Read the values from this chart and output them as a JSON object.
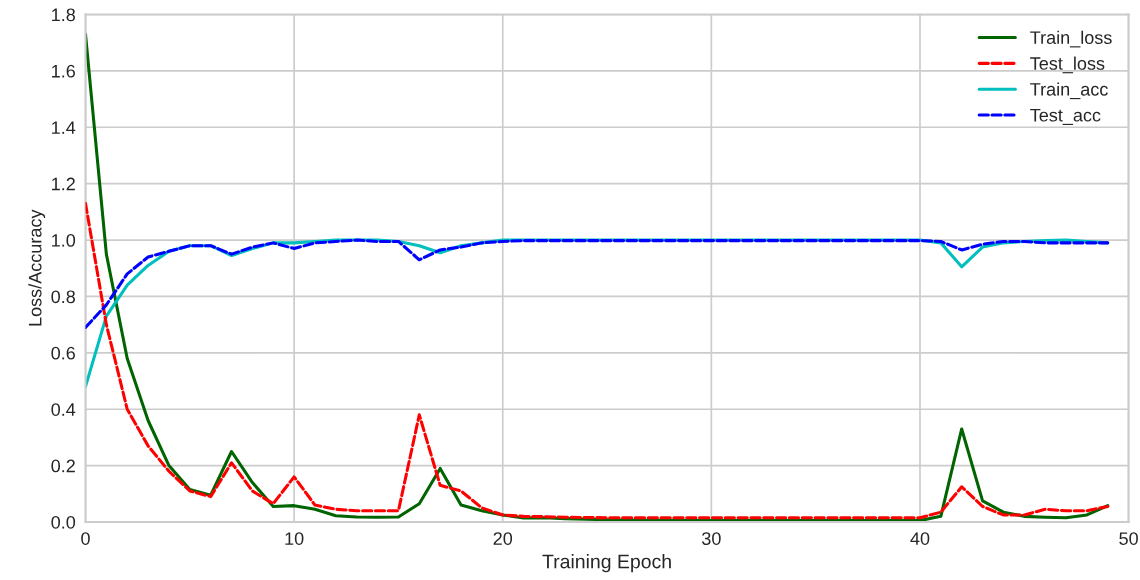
{
  "chart_data": {
    "type": "line",
    "xlabel": "Training Epoch",
    "ylabel": "Loss/Accuracy",
    "x": [
      0,
      1,
      2,
      3,
      4,
      5,
      6,
      7,
      8,
      9,
      10,
      11,
      12,
      13,
      14,
      15,
      16,
      17,
      18,
      19,
      20,
      21,
      22,
      23,
      24,
      25,
      26,
      27,
      28,
      29,
      30,
      31,
      32,
      33,
      34,
      35,
      36,
      37,
      38,
      39,
      40,
      41,
      42,
      43,
      44,
      45,
      46,
      47,
      48,
      49
    ],
    "series": [
      {
        "name": "Train_loss",
        "color": "#006400",
        "line_style": "solid",
        "values": [
          1.73,
          0.95,
          0.58,
          0.36,
          0.2,
          0.115,
          0.095,
          0.25,
          0.14,
          0.055,
          0.058,
          0.045,
          0.022,
          0.018,
          0.017,
          0.018,
          0.065,
          0.19,
          0.06,
          0.04,
          0.025,
          0.014,
          0.015,
          0.012,
          0.01,
          0.008,
          0.007,
          0.006,
          0.006,
          0.005,
          0.005,
          0.005,
          0.005,
          0.005,
          0.005,
          0.005,
          0.005,
          0.005,
          0.005,
          0.005,
          0.005,
          0.02,
          0.33,
          0.075,
          0.035,
          0.02,
          0.017,
          0.015,
          0.025,
          0.058
        ]
      },
      {
        "name": "Test_loss",
        "color": "#ff0000",
        "line_style": "dashed",
        "values": [
          1.13,
          0.7,
          0.4,
          0.27,
          0.18,
          0.11,
          0.09,
          0.21,
          0.11,
          0.065,
          0.16,
          0.06,
          0.045,
          0.04,
          0.04,
          0.04,
          0.38,
          0.13,
          0.11,
          0.05,
          0.025,
          0.02,
          0.019,
          0.017,
          0.016,
          0.015,
          0.015,
          0.015,
          0.015,
          0.015,
          0.015,
          0.015,
          0.015,
          0.015,
          0.015,
          0.015,
          0.015,
          0.015,
          0.015,
          0.015,
          0.015,
          0.035,
          0.125,
          0.055,
          0.025,
          0.025,
          0.045,
          0.04,
          0.04,
          0.055
        ]
      },
      {
        "name": "Train_acc",
        "color": "#00bfbf",
        "line_style": "solid",
        "values": [
          0.48,
          0.73,
          0.84,
          0.91,
          0.96,
          0.98,
          0.98,
          0.945,
          0.97,
          0.99,
          0.99,
          0.995,
          1.0,
          1.0,
          1.0,
          0.995,
          0.98,
          0.955,
          0.98,
          0.99,
          1.0,
          1.0,
          1.0,
          1.0,
          1.0,
          1.0,
          1.0,
          1.0,
          1.0,
          1.0,
          1.0,
          1.0,
          1.0,
          1.0,
          1.0,
          1.0,
          1.0,
          1.0,
          1.0,
          1.0,
          1.0,
          0.99,
          0.905,
          0.975,
          0.99,
          0.995,
          0.998,
          1.0,
          0.995,
          0.99
        ]
      },
      {
        "name": "Test_acc",
        "color": "#0000ff",
        "line_style": "dashed",
        "values": [
          0.69,
          0.77,
          0.88,
          0.94,
          0.96,
          0.98,
          0.98,
          0.95,
          0.975,
          0.99,
          0.97,
          0.99,
          0.995,
          1.0,
          0.995,
          0.995,
          0.93,
          0.965,
          0.975,
          0.99,
          0.995,
          0.998,
          0.998,
          0.998,
          0.998,
          0.998,
          0.998,
          0.998,
          0.998,
          0.998,
          0.998,
          0.998,
          0.998,
          0.998,
          0.998,
          0.998,
          0.998,
          0.998,
          0.998,
          0.998,
          0.998,
          0.995,
          0.965,
          0.985,
          0.995,
          0.995,
          0.99,
          0.99,
          0.99,
          0.99
        ]
      }
    ],
    "xlim": [
      0,
      50
    ],
    "xticks": [
      0,
      10,
      20,
      30,
      40,
      50
    ],
    "ylim": [
      0,
      1.8
    ],
    "yticks": [
      {
        "value": 0,
        "label": "0.0"
      },
      {
        "value": 0.2,
        "label": "0.2"
      },
      {
        "value": 0.4,
        "label": "0.4"
      },
      {
        "value": 0.6,
        "label": "0.6"
      },
      {
        "value": 0.8,
        "label": "0.8"
      },
      {
        "value": 1.0,
        "label": "1.0"
      },
      {
        "value": 1.2,
        "label": "1.2"
      },
      {
        "value": 1.4,
        "label": "1.4"
      },
      {
        "value": 1.6,
        "label": "1.6"
      },
      {
        "value": 1.8,
        "label": "1.8"
      }
    ],
    "grid": true,
    "legend": "top right",
    "marker": "none"
  }
}
